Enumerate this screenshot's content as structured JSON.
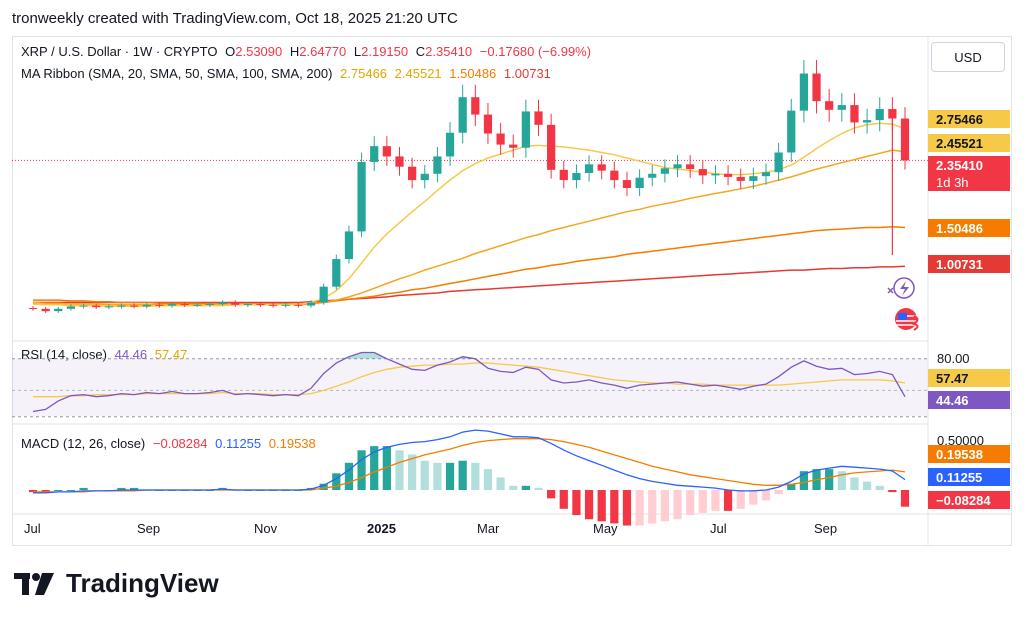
{
  "header": {
    "text": "tronweekly created with TradingView.com, Oct 18, 2025 21:20 UTC"
  },
  "toolbar": {
    "currency_label": "USD"
  },
  "legend": {
    "symbol": "XRP / U.S. Dollar · 1W · CRYPTO",
    "open_label": "O",
    "open": "2.53090",
    "high_label": "H",
    "high": "2.64770",
    "low_label": "L",
    "low": "2.19150",
    "close_label": "C",
    "close": "2.35410",
    "change": "−0.17680 (−6.99%)",
    "ma_label": "MA Ribbon (SMA, 20, SMA, 50, SMA, 100, SMA, 200)",
    "ma20": "2.75466",
    "ma50": "2.45521",
    "ma100": "1.50486",
    "ma200": "1.00731",
    "rsi_label": "RSI (14, close)",
    "rsi": "44.46",
    "rsi_ma": "57.47",
    "macd_label": "MACD (12, 26, close)",
    "macd_hist": "−0.08284",
    "macd": "0.11255",
    "macd_signal": "0.19538"
  },
  "price_scale": {
    "tags": [
      {
        "text": "2.75466",
        "bg": "#f7c948",
        "fg": "#131722"
      },
      {
        "text": "2.45521",
        "bg": "#f7c948",
        "fg": "#131722"
      },
      {
        "text": "2.35410",
        "bg": "#f23645",
        "fg": "#ffffff"
      },
      {
        "text": "1d 3h",
        "bg": "#f23645",
        "fg": "#ffffff"
      },
      {
        "text": "1.50486",
        "bg": "#f57c00",
        "fg": "#ffffff"
      },
      {
        "text": "1.00731",
        "bg": "#e53935",
        "fg": "#ffffff"
      }
    ],
    "rsi_level": "80.00",
    "rsi_tags": [
      {
        "text": "57.47",
        "bg": "#f7c948",
        "fg": "#131722"
      },
      {
        "text": "44.46",
        "bg": "#7e57c2",
        "fg": "#ffffff"
      }
    ],
    "macd_level": "0.50000",
    "macd_tags": [
      {
        "text": "0.19538",
        "bg": "#f57c00",
        "fg": "#ffffff"
      },
      {
        "text": "0.11255",
        "bg": "#2962ff",
        "fg": "#ffffff"
      },
      {
        "text": "−0.08284",
        "bg": "#f23645",
        "fg": "#ffffff"
      }
    ]
  },
  "time_axis": [
    "Jul",
    "Sep",
    "Nov",
    "2025",
    "Mar",
    "May",
    "Jul",
    "Sep"
  ],
  "brand": {
    "name": "TradingView"
  },
  "colors": {
    "up": "#26a69a",
    "down": "#f23645",
    "ma20": "#f7c948",
    "ma50": "#f5a623",
    "ma100": "#f57c00",
    "ma200": "#e53935",
    "rsi": "#7e57c2",
    "macd": "#2962ff",
    "signal": "#f57c00"
  },
  "chart_data": {
    "type": "candlestick",
    "title": "XRP / U.S. Dollar · 1W · CRYPTO",
    "ylim": [
      0.1,
      3.9
    ],
    "candles_count": 70,
    "series": [
      {
        "name": "price_close",
        "values": [
          0.47,
          0.44,
          0.47,
          0.5,
          0.51,
          0.49,
          0.5,
          0.51,
          0.5,
          0.52,
          0.51,
          0.53,
          0.52,
          0.52,
          0.53,
          0.55,
          0.52,
          0.53,
          0.52,
          0.51,
          0.52,
          0.51,
          0.55,
          0.75,
          1.1,
          1.45,
          2.33,
          2.53,
          2.4,
          2.27,
          2.1,
          2.18,
          2.4,
          2.7,
          3.15,
          2.93,
          2.69,
          2.55,
          2.51,
          2.97,
          2.8,
          2.23,
          2.1,
          2.19,
          2.3,
          2.22,
          2.1,
          2.0,
          2.13,
          2.18,
          2.25,
          2.3,
          2.24,
          2.16,
          2.18,
          2.14,
          2.09,
          2.15,
          2.2,
          2.45,
          2.98,
          3.45,
          3.1,
          2.99,
          3.05,
          2.83,
          2.86,
          3.0,
          2.88,
          2.35
        ]
      },
      {
        "name": "SMA 20",
        "values": [
          0.53,
          0.52,
          0.52,
          0.51,
          0.51,
          0.51,
          0.5,
          0.5,
          0.5,
          0.5,
          0.51,
          0.51,
          0.51,
          0.51,
          0.51,
          0.51,
          0.52,
          0.52,
          0.52,
          0.52,
          0.52,
          0.53,
          0.55,
          0.6,
          0.7,
          0.85,
          1.05,
          1.25,
          1.42,
          1.56,
          1.7,
          1.83,
          1.97,
          2.1,
          2.22,
          2.31,
          2.38,
          2.43,
          2.48,
          2.53,
          2.54,
          2.53,
          2.52,
          2.5,
          2.48,
          2.45,
          2.42,
          2.38,
          2.34,
          2.3,
          2.26,
          2.24,
          2.22,
          2.2,
          2.18,
          2.17,
          2.17,
          2.18,
          2.2,
          2.23,
          2.29,
          2.39,
          2.5,
          2.6,
          2.69,
          2.76,
          2.8,
          2.82,
          2.81,
          2.75
        ]
      },
      {
        "name": "SMA 50",
        "values": [
          0.55,
          0.54,
          0.54,
          0.53,
          0.53,
          0.53,
          0.52,
          0.52,
          0.52,
          0.52,
          0.52,
          0.52,
          0.52,
          0.52,
          0.52,
          0.52,
          0.52,
          0.52,
          0.52,
          0.52,
          0.52,
          0.52,
          0.53,
          0.55,
          0.58,
          0.62,
          0.67,
          0.73,
          0.79,
          0.85,
          0.9,
          0.96,
          1.01,
          1.06,
          1.11,
          1.17,
          1.22,
          1.27,
          1.32,
          1.37,
          1.41,
          1.46,
          1.5,
          1.54,
          1.58,
          1.62,
          1.66,
          1.7,
          1.73,
          1.77,
          1.8,
          1.83,
          1.87,
          1.9,
          1.93,
          1.96,
          1.99,
          2.02,
          2.06,
          2.1,
          2.14,
          2.19,
          2.24,
          2.28,
          2.32,
          2.36,
          2.4,
          2.44,
          2.48,
          2.46
        ]
      },
      {
        "name": "SMA 100",
        "values": [
          0.58,
          0.58,
          0.58,
          0.57,
          0.57,
          0.56,
          0.56,
          0.55,
          0.55,
          0.55,
          0.54,
          0.54,
          0.54,
          0.54,
          0.53,
          0.53,
          0.53,
          0.53,
          0.53,
          0.53,
          0.53,
          0.53,
          0.54,
          0.55,
          0.57,
          0.59,
          0.61,
          0.63,
          0.66,
          0.68,
          0.71,
          0.73,
          0.76,
          0.79,
          0.82,
          0.85,
          0.88,
          0.91,
          0.94,
          0.97,
          0.99,
          1.02,
          1.04,
          1.07,
          1.09,
          1.11,
          1.13,
          1.16,
          1.18,
          1.2,
          1.22,
          1.24,
          1.26,
          1.28,
          1.3,
          1.32,
          1.34,
          1.36,
          1.38,
          1.4,
          1.42,
          1.44,
          1.46,
          1.47,
          1.48,
          1.49,
          1.5,
          1.5,
          1.51,
          1.5
        ]
      },
      {
        "name": "SMA 200",
        "values": [
          0.55,
          0.55,
          0.55,
          0.55,
          0.55,
          0.55,
          0.55,
          0.55,
          0.55,
          0.55,
          0.55,
          0.55,
          0.55,
          0.55,
          0.55,
          0.55,
          0.55,
          0.55,
          0.55,
          0.55,
          0.55,
          0.55,
          0.56,
          0.57,
          0.58,
          0.59,
          0.6,
          0.61,
          0.62,
          0.64,
          0.65,
          0.66,
          0.67,
          0.69,
          0.7,
          0.71,
          0.72,
          0.73,
          0.74,
          0.75,
          0.76,
          0.77,
          0.78,
          0.79,
          0.8,
          0.81,
          0.82,
          0.83,
          0.84,
          0.85,
          0.86,
          0.87,
          0.88,
          0.89,
          0.9,
          0.91,
          0.92,
          0.93,
          0.94,
          0.95,
          0.96,
          0.96,
          0.97,
          0.98,
          0.98,
          0.99,
          0.99,
          1.0,
          1.0,
          1.01
        ]
      },
      {
        "name": "RSI",
        "values": [
          30,
          32,
          40,
          45,
          46,
          44,
          45,
          47,
          46,
          48,
          47,
          49,
          47,
          47,
          48,
          50,
          46,
          47,
          46,
          45,
          46,
          45,
          52,
          66,
          76,
          82,
          86,
          86,
          80,
          75,
          70,
          69,
          74,
          77,
          82,
          80,
          71,
          68,
          67,
          72,
          70,
          60,
          57,
          58,
          60,
          57,
          55,
          52,
          55,
          56,
          57,
          58,
          56,
          54,
          55,
          53,
          51,
          54,
          56,
          63,
          72,
          78,
          73,
          70,
          71,
          65,
          66,
          68,
          65,
          44
        ]
      },
      {
        "name": "RSI MA",
        "values": [
          44,
          44,
          44,
          45,
          45,
          46,
          46,
          46,
          46,
          47,
          47,
          47,
          47,
          47,
          47,
          48,
          47,
          47,
          47,
          46,
          46,
          46,
          47,
          50,
          54,
          58,
          63,
          67,
          70,
          72,
          73,
          74,
          74,
          75,
          75,
          76,
          76,
          75,
          74,
          73,
          72,
          70,
          68,
          66,
          64,
          62,
          60,
          59,
          58,
          57,
          57,
          56,
          56,
          56,
          55,
          55,
          55,
          55,
          55,
          55,
          56,
          57,
          58,
          59,
          60,
          60,
          60,
          60,
          59,
          57
        ]
      },
      {
        "name": "MACD",
        "values": [
          -0.03,
          -0.03,
          -0.02,
          -0.02,
          -0.01,
          -0.01,
          -0.01,
          0.0,
          0.0,
          0.0,
          0.0,
          0.0,
          0.0,
          0.0,
          0.0,
          0.01,
          0.0,
          0.0,
          0.0,
          0.0,
          0.0,
          0.0,
          0.01,
          0.05,
          0.12,
          0.21,
          0.32,
          0.4,
          0.45,
          0.48,
          0.5,
          0.51,
          0.53,
          0.56,
          0.61,
          0.63,
          0.62,
          0.59,
          0.56,
          0.56,
          0.55,
          0.49,
          0.42,
          0.36,
          0.31,
          0.26,
          0.21,
          0.16,
          0.12,
          0.09,
          0.07,
          0.05,
          0.04,
          0.03,
          0.02,
          0.0,
          -0.01,
          -0.01,
          0.0,
          0.03,
          0.09,
          0.17,
          0.21,
          0.23,
          0.25,
          0.24,
          0.23,
          0.22,
          0.2,
          0.11
        ]
      },
      {
        "name": "Signal",
        "values": [
          -0.02,
          -0.02,
          -0.02,
          -0.02,
          -0.02,
          -0.01,
          -0.01,
          -0.01,
          -0.01,
          0.0,
          0.0,
          0.0,
          0.0,
          0.0,
          0.0,
          0.0,
          0.0,
          0.0,
          0.0,
          0.0,
          0.0,
          0.0,
          0.0,
          0.02,
          0.04,
          0.08,
          0.13,
          0.19,
          0.24,
          0.29,
          0.33,
          0.37,
          0.4,
          0.43,
          0.47,
          0.5,
          0.52,
          0.53,
          0.54,
          0.54,
          0.54,
          0.53,
          0.51,
          0.48,
          0.45,
          0.41,
          0.37,
          0.33,
          0.29,
          0.25,
          0.22,
          0.19,
          0.16,
          0.14,
          0.12,
          0.1,
          0.08,
          0.06,
          0.05,
          0.05,
          0.06,
          0.08,
          0.11,
          0.13,
          0.16,
          0.18,
          0.19,
          0.2,
          0.21,
          0.19
        ]
      }
    ]
  }
}
